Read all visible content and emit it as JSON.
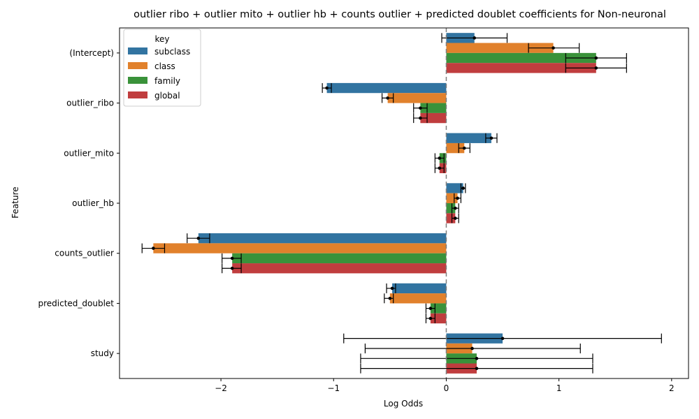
{
  "chart_data": {
    "type": "bar",
    "orientation": "horizontal",
    "title": "outlier ribo + outlier mito + outlier hb + counts outlier + predicted doublet coefficients for Non-neuronal",
    "xlabel": "Log Odds",
    "ylabel": "Feature",
    "xlim": [
      -2.9,
      2.15
    ],
    "x_ticks": [
      -2,
      -1,
      0,
      1,
      2
    ],
    "x_tick_labels": [
      "−2",
      "−1",
      "0",
      "1",
      "2"
    ],
    "reference_line": 0,
    "legend": {
      "title": "key",
      "placement": "top-left"
    },
    "categories": [
      "(Intercept)",
      "outlier_ribo",
      "outlier_mito",
      "outlier_hb",
      "counts_outlier",
      "predicted_doublet",
      "study"
    ],
    "series": [
      {
        "name": "subclass",
        "color": "#3274a1",
        "values": [
          0.25,
          -1.06,
          0.4,
          0.15,
          -2.2,
          -0.48,
          0.5
        ],
        "ci_low": [
          -0.04,
          -1.1,
          0.35,
          0.13,
          -2.3,
          -0.53,
          -0.91
        ],
        "ci_high": [
          0.54,
          -1.02,
          0.45,
          0.17,
          -2.1,
          -0.45,
          1.91
        ]
      },
      {
        "name": "class",
        "color": "#e1812c",
        "values": [
          0.95,
          -0.52,
          0.16,
          0.1,
          -2.6,
          -0.5,
          0.23
        ],
        "ci_low": [
          0.73,
          -0.57,
          0.11,
          0.07,
          -2.7,
          -0.55,
          -0.72
        ],
        "ci_high": [
          1.18,
          -0.47,
          0.21,
          0.13,
          -2.5,
          -0.47,
          1.19
        ]
      },
      {
        "name": "family",
        "color": "#3a923a",
        "values": [
          1.33,
          -0.23,
          -0.06,
          0.08,
          -1.9,
          -0.14,
          0.27
        ],
        "ci_low": [
          1.06,
          -0.29,
          -0.1,
          0.05,
          -1.99,
          -0.18,
          -0.76
        ],
        "ci_high": [
          1.6,
          -0.17,
          -0.02,
          0.11,
          -1.82,
          -0.1,
          1.3
        ]
      },
      {
        "name": "global",
        "color": "#c03d3e",
        "values": [
          1.33,
          -0.23,
          -0.06,
          0.08,
          -1.9,
          -0.14,
          0.27
        ],
        "ci_low": [
          1.06,
          -0.29,
          -0.1,
          0.05,
          -1.99,
          -0.18,
          -0.76
        ],
        "ci_high": [
          1.6,
          -0.17,
          -0.02,
          0.11,
          -1.82,
          -0.1,
          1.3
        ]
      }
    ]
  }
}
